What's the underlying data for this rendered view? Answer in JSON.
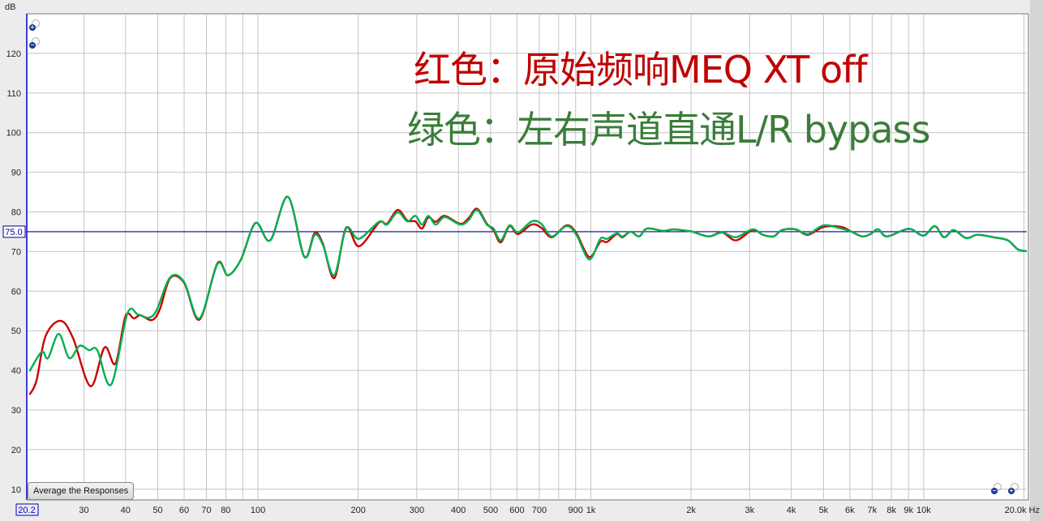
{
  "chart_data": {
    "type": "line",
    "ylabel": "dB",
    "xunit": "Hz",
    "xscale": "log",
    "xlim": [
      20.2,
      20400
    ],
    "ylim": [
      7.3,
      130
    ],
    "grid": true,
    "yticks": [
      10,
      20,
      30,
      40,
      50,
      60,
      70,
      80,
      90,
      100,
      110,
      120
    ],
    "xticks": [
      {
        "v": 30,
        "label": "30"
      },
      {
        "v": 40,
        "label": "40"
      },
      {
        "v": 50,
        "label": "50"
      },
      {
        "v": 60,
        "label": "60"
      },
      {
        "v": 70,
        "label": "70"
      },
      {
        "v": 80,
        "label": "80"
      },
      {
        "v": 100,
        "label": "100"
      },
      {
        "v": 200,
        "label": "200"
      },
      {
        "v": 300,
        "label": "300"
      },
      {
        "v": 400,
        "label": "400"
      },
      {
        "v": 500,
        "label": "500"
      },
      {
        "v": 600,
        "label": "600"
      },
      {
        "v": 700,
        "label": "700"
      },
      {
        "v": 900,
        "label": "900"
      },
      {
        "v": 1000,
        "label": "1k"
      },
      {
        "v": 2000,
        "label": "2k"
      },
      {
        "v": 3000,
        "label": "3k"
      },
      {
        "v": 4000,
        "label": "4k"
      },
      {
        "v": 5000,
        "label": "5k"
      },
      {
        "v": 6000,
        "label": "6k"
      },
      {
        "v": 7000,
        "label": "7k"
      },
      {
        "v": 8000,
        "label": "8k"
      },
      {
        "v": 9000,
        "label": "9k"
      },
      {
        "v": 10000,
        "label": "10k"
      }
    ],
    "xgrid": [
      30,
      40,
      50,
      60,
      70,
      80,
      90,
      100,
      200,
      300,
      400,
      500,
      600,
      700,
      800,
      900,
      1000,
      2000,
      3000,
      4000,
      5000,
      6000,
      7000,
      8000,
      9000,
      10000,
      20000
    ],
    "x_start_label": "20.2",
    "x_end_label": "20.0k Hz",
    "reference_line": {
      "value": 75.0,
      "label": "75.0",
      "color": "#00008b"
    },
    "cursor_color": "#0000cc",
    "series": [
      {
        "color": "#cc0000",
        "points": [
          [
            20.6,
            33.9
          ],
          [
            21.6,
            37.4
          ],
          [
            23,
            48.6
          ],
          [
            25.5,
            52.5
          ],
          [
            27.8,
            48.2
          ],
          [
            31.4,
            36
          ],
          [
            34.6,
            45.8
          ],
          [
            37.3,
            41.7
          ],
          [
            40,
            53.7
          ],
          [
            42.4,
            53.1
          ],
          [
            44.3,
            53.9
          ],
          [
            48,
            52.7
          ],
          [
            50.7,
            55.4
          ],
          [
            54.5,
            63.3
          ],
          [
            60,
            62.1
          ],
          [
            66.7,
            52.8
          ],
          [
            75.5,
            67
          ],
          [
            81.3,
            64
          ],
          [
            88.9,
            68
          ],
          [
            98.3,
            77.2
          ],
          [
            108.8,
            72.8
          ],
          [
            123,
            83.8
          ],
          [
            137.7,
            68.7
          ],
          [
            148,
            74.6
          ],
          [
            156.6,
            72
          ],
          [
            169.5,
            63.3
          ],
          [
            184,
            76
          ],
          [
            201,
            71.3
          ],
          [
            231,
            77.3
          ],
          [
            244,
            77
          ],
          [
            263,
            80.5
          ],
          [
            281,
            77.8
          ],
          [
            297,
            77.6
          ],
          [
            311,
            75.8
          ],
          [
            325,
            78.6
          ],
          [
            342,
            77.5
          ],
          [
            364,
            79
          ],
          [
            405,
            77
          ],
          [
            429,
            78.4
          ],
          [
            455,
            80.8
          ],
          [
            487,
            77
          ],
          [
            510,
            75.4
          ],
          [
            536,
            72.3
          ],
          [
            570,
            76.4
          ],
          [
            604,
            74.4
          ],
          [
            664,
            76.8
          ],
          [
            710,
            76
          ],
          [
            763,
            73.6
          ],
          [
            845,
            76.6
          ],
          [
            905,
            74.6
          ],
          [
            989,
            68.6
          ],
          [
            1068,
            72.5
          ],
          [
            1118,
            72.4
          ],
          [
            1196,
            74.4
          ],
          [
            1244,
            73.6
          ],
          [
            1316,
            75
          ],
          [
            1396,
            73.8
          ],
          [
            1475,
            75.8
          ],
          [
            1650,
            75.2
          ],
          [
            1770,
            75.6
          ],
          [
            1950,
            75.2
          ],
          [
            2020,
            75
          ],
          [
            2260,
            73.8
          ],
          [
            2480,
            74.8
          ],
          [
            2730,
            72.8
          ],
          [
            3060,
            75.4
          ],
          [
            3290,
            74.2
          ],
          [
            3540,
            73.8
          ],
          [
            3750,
            75.4
          ],
          [
            4120,
            75.6
          ],
          [
            4490,
            74.2
          ],
          [
            5000,
            76.2
          ],
          [
            5650,
            76.2
          ],
          [
            6070,
            75
          ],
          [
            6540,
            73.8
          ],
          [
            6920,
            74.4
          ],
          [
            7300,
            75.6
          ],
          [
            7730,
            73.8
          ],
          [
            8690,
            75.4
          ],
          [
            9200,
            75.6
          ],
          [
            10000,
            74
          ],
          [
            10800,
            76.4
          ],
          [
            11500,
            73.6
          ],
          [
            12300,
            75.4
          ],
          [
            13400,
            73.4
          ],
          [
            14500,
            74.2
          ],
          [
            16200,
            73.6
          ],
          [
            17900,
            72.8
          ],
          [
            19200,
            70.5
          ],
          [
            20400,
            70.1
          ]
        ]
      },
      {
        "color": "#00b050",
        "points": [
          [
            20.6,
            39.8
          ],
          [
            22.4,
            44.7
          ],
          [
            23.4,
            43.1
          ],
          [
            25.2,
            49.2
          ],
          [
            27.1,
            43.1
          ],
          [
            29.1,
            46.2
          ],
          [
            31.1,
            45.1
          ],
          [
            32.9,
            45.1
          ],
          [
            36.2,
            36.4
          ],
          [
            40.5,
            54.3
          ],
          [
            43.6,
            54.1
          ],
          [
            46.9,
            53.3
          ],
          [
            49.6,
            55.2
          ],
          [
            54.5,
            63.5
          ],
          [
            60,
            62.3
          ],
          [
            66.7,
            53.1
          ],
          [
            75.5,
            66.8
          ],
          [
            81.3,
            64
          ],
          [
            88.9,
            68
          ],
          [
            98.3,
            77.2
          ],
          [
            108.8,
            72.8
          ],
          [
            123,
            83.8
          ],
          [
            137.7,
            68.7
          ],
          [
            148,
            74.2
          ],
          [
            156.6,
            71.7
          ],
          [
            169.5,
            64
          ],
          [
            184,
            75.8
          ],
          [
            201,
            73.2
          ],
          [
            231,
            77.5
          ],
          [
            244,
            76.8
          ],
          [
            263,
            79.9
          ],
          [
            281,
            77.6
          ],
          [
            297,
            79
          ],
          [
            311,
            76.8
          ],
          [
            325,
            79
          ],
          [
            342,
            76.8
          ],
          [
            364,
            78.7
          ],
          [
            405,
            76.8
          ],
          [
            429,
            77.9
          ],
          [
            455,
            80.5
          ],
          [
            487,
            76.8
          ],
          [
            510,
            75.8
          ],
          [
            536,
            72.8
          ],
          [
            570,
            76.6
          ],
          [
            604,
            74.8
          ],
          [
            664,
            77.6
          ],
          [
            710,
            77
          ],
          [
            763,
            73.8
          ],
          [
            845,
            76.4
          ],
          [
            905,
            74.2
          ],
          [
            989,
            68
          ],
          [
            1068,
            73.2
          ],
          [
            1118,
            73.2
          ],
          [
            1196,
            74.6
          ],
          [
            1244,
            73.8
          ],
          [
            1316,
            75
          ],
          [
            1396,
            73.8
          ],
          [
            1475,
            75.8
          ],
          [
            1650,
            75.2
          ],
          [
            1770,
            75.6
          ],
          [
            1950,
            75.2
          ],
          [
            2020,
            75
          ],
          [
            2260,
            73.8
          ],
          [
            2480,
            74.8
          ],
          [
            2730,
            73.6
          ],
          [
            3060,
            75.6
          ],
          [
            3290,
            74.2
          ],
          [
            3540,
            73.8
          ],
          [
            3750,
            75.4
          ],
          [
            4120,
            75.6
          ],
          [
            4490,
            74.4
          ],
          [
            5000,
            76.6
          ],
          [
            5650,
            75.8
          ],
          [
            6070,
            75
          ],
          [
            6540,
            73.8
          ],
          [
            6920,
            74.4
          ],
          [
            7300,
            75.6
          ],
          [
            7730,
            73.8
          ],
          [
            8690,
            75.4
          ],
          [
            9200,
            75.6
          ],
          [
            10000,
            74
          ],
          [
            10800,
            76.4
          ],
          [
            11500,
            73.6
          ],
          [
            12300,
            75.4
          ],
          [
            13400,
            73.4
          ],
          [
            14500,
            74.2
          ],
          [
            16200,
            73.6
          ],
          [
            17900,
            72.8
          ],
          [
            19200,
            70.5
          ],
          [
            20400,
            70.1
          ]
        ]
      }
    ],
    "annotations": [
      {
        "text": "红色：原始频响MEQ XT off",
        "color": "#c00000"
      },
      {
        "text": "绿色：左右声道直通L/R bypass",
        "color": "#3a7d3a"
      }
    ]
  },
  "controls": {
    "average_button": "Average the Responses",
    "zoom_in_icon": "zoom-in-icon",
    "zoom_out_icon": "zoom-out-icon"
  }
}
